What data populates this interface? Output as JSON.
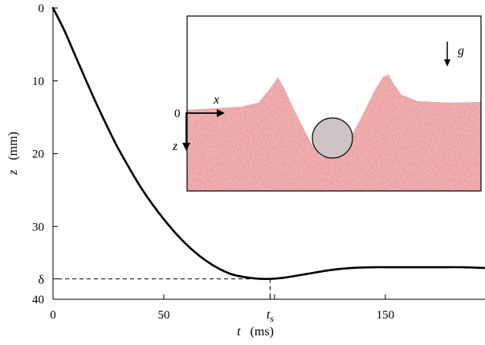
{
  "chart_data": {
    "type": "line",
    "xlabel_symbol": "t",
    "xlabel_unit": "(ms)",
    "ylabel_symbol": "z",
    "ylabel_unit": "(mm)",
    "xlim": [
      0,
      195
    ],
    "ylim": [
      0,
      40
    ],
    "y_inverted": true,
    "x_ticks": [
      0,
      50,
      100,
      150
    ],
    "x_tick_labels": [
      "0",
      "50",
      "",
      "150"
    ],
    "y_ticks": [
      0,
      10,
      20,
      30,
      40
    ],
    "y_tick_labels": [
      "0",
      "10",
      "20",
      "30",
      "40"
    ],
    "grid": false,
    "special_x": {
      "value": 98,
      "symbol": "t",
      "subscript": "s"
    },
    "special_y": {
      "value": 37.2,
      "label": "δ"
    },
    "series": [
      {
        "x": [
          0,
          5,
          10,
          15,
          20,
          25,
          30,
          40,
          50,
          60,
          70,
          80,
          90,
          98,
          105,
          115,
          125,
          135,
          145,
          155,
          165,
          175,
          185,
          195
        ],
        "y": [
          0,
          3.0,
          6.5,
          10.0,
          13.4,
          16.6,
          19.6,
          24.8,
          29.0,
          32.4,
          34.9,
          36.5,
          37.1,
          37.2,
          37.0,
          36.5,
          36.0,
          35.7,
          35.6,
          35.6,
          35.6,
          35.6,
          35.6,
          35.7
        ]
      }
    ],
    "inset": {
      "description_labels": {
        "gravity": "g",
        "x_axis": "x",
        "z_axis": "z",
        "origin": "0"
      },
      "bed_color": "#e4585c",
      "sphere_color": "#cfc3c6"
    }
  }
}
